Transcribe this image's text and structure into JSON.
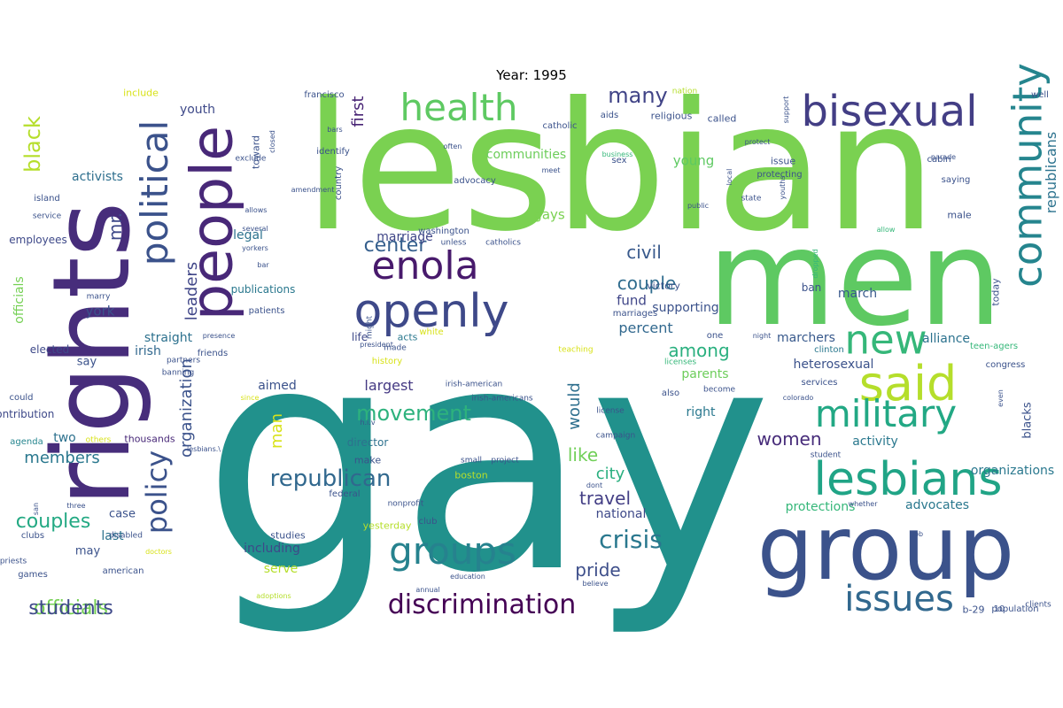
{
  "title": "Year: 1995",
  "cloud": {
    "words": [
      {
        "t": "gay",
        "c": "#21918c"
      },
      {
        "t": "lesbian",
        "c": "#7ad151"
      },
      {
        "t": "men",
        "c": "#5ec962"
      },
      {
        "t": "rights",
        "c": "#472d7b"
      },
      {
        "t": "group",
        "c": "#3b528b"
      },
      {
        "t": "openly",
        "c": "#3e4989"
      },
      {
        "t": "people",
        "c": "#482878"
      },
      {
        "t": "bisexual",
        "c": "#433e85"
      },
      {
        "t": "health",
        "c": "#5ec962"
      },
      {
        "t": "enola",
        "c": "#481a6c"
      },
      {
        "t": "political",
        "c": "#3b528b"
      },
      {
        "t": "community",
        "c": "#25858e"
      },
      {
        "t": "said",
        "c": "#b5de2b"
      },
      {
        "t": "new",
        "c": "#35b779"
      },
      {
        "t": "military",
        "c": "#22a884"
      },
      {
        "t": "lesbians",
        "c": "#20a486"
      },
      {
        "t": "groups",
        "c": "#26828e"
      },
      {
        "t": "issues",
        "c": "#31688e"
      },
      {
        "t": "discrimination",
        "c": "#440154"
      },
      {
        "t": "policy",
        "c": "#3b528b"
      },
      {
        "t": "crisis",
        "c": "#2a788e"
      },
      {
        "t": "republican",
        "c": "#31688e"
      },
      {
        "t": "movement",
        "c": "#2db27d"
      },
      {
        "t": "couples",
        "c": "#23a983"
      },
      {
        "t": "officials",
        "c": "#75d054"
      },
      {
        "t": "many",
        "c": "#414487"
      },
      {
        "t": "black",
        "c": "#b5de2b"
      },
      {
        "t": "center",
        "c": "#355f8d"
      },
      {
        "t": "couple",
        "c": "#2f6c8e"
      },
      {
        "t": "civil",
        "c": "#38598c"
      },
      {
        "t": "among",
        "c": "#2ab07f"
      },
      {
        "t": "women",
        "c": "#472c7a"
      },
      {
        "t": "like",
        "c": "#70cf57"
      },
      {
        "t": "pride",
        "c": "#3d4e8a"
      },
      {
        "t": "travel",
        "c": "#433e85"
      },
      {
        "t": "members",
        "c": "#2a788e"
      },
      {
        "t": "mr.",
        "c": "#3e4989"
      },
      {
        "t": "organization",
        "c": "#3b528b"
      },
      {
        "t": "leaders",
        "c": "#404688"
      },
      {
        "t": "largest",
        "c": "#443983"
      },
      {
        "t": "republicans",
        "c": "#2c728e"
      },
      {
        "t": "city",
        "c": "#29af7f"
      },
      {
        "t": "would",
        "c": "#2e6f8e"
      },
      {
        "t": "activists",
        "c": "#2e6f8e"
      },
      {
        "t": "straight",
        "c": "#2d718e"
      },
      {
        "t": "york",
        "c": "#3b528b"
      },
      {
        "t": "marriage",
        "c": "#404688"
      },
      {
        "t": "gays",
        "c": "#7ad151"
      },
      {
        "t": "legal",
        "c": "#2c728e"
      },
      {
        "t": "percent",
        "c": "#31688e"
      },
      {
        "t": "fund",
        "c": "#404688"
      },
      {
        "t": "irish",
        "c": "#31688e"
      },
      {
        "t": "march",
        "c": "#38598c"
      },
      {
        "t": "right",
        "c": "#2a788e"
      },
      {
        "t": "parents",
        "c": "#6ccd5a"
      },
      {
        "t": "aimed",
        "c": "#3b528b"
      },
      {
        "t": "man",
        "c": "#d8e219"
      },
      {
        "t": "two",
        "c": "#2d718e"
      },
      {
        "t": "young",
        "c": "#5ec962"
      },
      {
        "t": "first",
        "c": "#482475"
      },
      {
        "t": "youth",
        "c": "#3e4989"
      },
      {
        "t": "communities",
        "c": "#6ccd5a"
      },
      {
        "t": "including",
        "c": "#3e4989"
      },
      {
        "t": "serve",
        "c": "#b5de2b"
      },
      {
        "t": "national",
        "c": "#3e4989"
      },
      {
        "t": "protections",
        "c": "#35b779"
      },
      {
        "t": "advocates",
        "c": "#2a788e"
      },
      {
        "t": "organizations",
        "c": "#2a788e"
      },
      {
        "t": "activity",
        "c": "#2a788e"
      },
      {
        "t": "heterosexual",
        "c": "#3b528b"
      },
      {
        "t": "marchers",
        "c": "#38598c"
      },
      {
        "t": "alliance",
        "c": "#2c728e"
      },
      {
        "t": "blacks",
        "c": "#3b528b"
      },
      {
        "t": "students",
        "c": "#3e4989"
      },
      {
        "t": "officials",
        "c": "#75d054"
      },
      {
        "t": "say",
        "c": "#3b528b"
      },
      {
        "t": "last",
        "c": "#2c728e"
      },
      {
        "t": "may",
        "c": "#3b528b"
      },
      {
        "t": "case",
        "c": "#3b528b"
      },
      {
        "t": "employees",
        "c": "#3e4989"
      },
      {
        "t": "elected",
        "c": "#3e4989"
      },
      {
        "t": "contribution",
        "c": "#3e4989"
      },
      {
        "t": "could",
        "c": "#3b528b"
      },
      {
        "t": "agenda",
        "c": "#25858e"
      },
      {
        "t": "thousands",
        "c": "#482878"
      },
      {
        "t": "director",
        "c": "#2d718e"
      },
      {
        "t": "life",
        "c": "#3e4989"
      },
      {
        "t": "acts",
        "c": "#2a788e"
      },
      {
        "t": "publications",
        "c": "#2a788e"
      },
      {
        "t": "patients",
        "c": "#3b528b"
      },
      {
        "t": "victory",
        "c": "#3b528b"
      },
      {
        "t": "marriages",
        "c": "#3b528b"
      },
      {
        "t": "supporting",
        "c": "#3b528b"
      },
      {
        "t": "ban",
        "c": "#3b528b"
      },
      {
        "t": "one",
        "c": "#3b528b"
      },
      {
        "t": "clinton",
        "c": "#2a788e"
      },
      {
        "t": "services",
        "c": "#3b528b"
      },
      {
        "t": "also",
        "c": "#3b528b"
      },
      {
        "t": "issue",
        "c": "#3b528b"
      },
      {
        "t": "protecting",
        "c": "#3b528b"
      },
      {
        "t": "called",
        "c": "#3b528b"
      },
      {
        "t": "religious",
        "c": "#3b528b"
      },
      {
        "t": "aids",
        "c": "#3b528b"
      },
      {
        "t": "sex",
        "c": "#3b528b"
      },
      {
        "t": "identify",
        "c": "#3b528b"
      },
      {
        "t": "advocacy",
        "c": "#3b528b"
      },
      {
        "t": "country",
        "c": "#3b528b"
      },
      {
        "t": "toward",
        "c": "#3b528b"
      },
      {
        "t": "male",
        "c": "#3b528b"
      },
      {
        "t": "saying",
        "c": "#3b528b"
      },
      {
        "t": "cabin",
        "c": "#3b528b"
      },
      {
        "t": "well",
        "c": "#3b528b"
      },
      {
        "t": "today",
        "c": "#3b528b"
      },
      {
        "t": "teen-agers",
        "c": "#35b779"
      },
      {
        "t": "congress",
        "c": "#3b528b"
      },
      {
        "t": "make",
        "c": "#3b528b"
      },
      {
        "t": "boston",
        "c": "#b5de2b"
      },
      {
        "t": "yesterday",
        "c": "#b5de2b"
      },
      {
        "t": "studies",
        "c": "#3b528b"
      },
      {
        "t": "american",
        "c": "#3b528b"
      },
      {
        "t": "games",
        "c": "#3b528b"
      },
      {
        "t": "clubs",
        "c": "#3b528b"
      },
      {
        "t": "b-29",
        "c": "#3b528b"
      },
      {
        "t": "population",
        "c": "#3b528b"
      },
      {
        "t": "10",
        "c": "#3b528b"
      },
      {
        "t": "clients",
        "c": "#3b528b"
      },
      {
        "t": "include",
        "c": "#d8e219"
      },
      {
        "t": "francisco",
        "c": "#3b528b"
      },
      {
        "t": "nation",
        "c": "#b5de2b"
      },
      {
        "t": "catholic",
        "c": "#3b528b"
      },
      {
        "t": "island",
        "c": "#3b528b"
      },
      {
        "t": "service",
        "c": "#3b528b"
      },
      {
        "t": "marry",
        "c": "#3b528b"
      },
      {
        "t": "washington",
        "c": "#3b528b"
      },
      {
        "t": "unless",
        "c": "#3b528b"
      },
      {
        "t": "catholics",
        "c": "#3b528b"
      },
      {
        "t": "exclude",
        "c": "#3b528b"
      },
      {
        "t": "others",
        "c": "#d8e219"
      },
      {
        "t": "white",
        "c": "#d8e219"
      },
      {
        "t": "teaching",
        "c": "#d8e219"
      },
      {
        "t": "history",
        "c": "#d8e219"
      },
      {
        "t": "friends",
        "c": "#3b528b"
      },
      {
        "t": "partners",
        "c": "#3b528b"
      },
      {
        "t": "banning",
        "c": "#3b528b"
      },
      {
        "t": "disabled",
        "c": "#3b528b"
      },
      {
        "t": "priests",
        "c": "#3b528b"
      },
      {
        "t": "doctors",
        "c": "#d8e219"
      },
      {
        "t": "club",
        "c": "#3b528b"
      },
      {
        "t": "federal",
        "c": "#3b528b"
      },
      {
        "t": "nonprofit",
        "c": "#3b528b"
      },
      {
        "t": "irish-american",
        "c": "#3b528b"
      },
      {
        "t": "irish-americans",
        "c": "#3b528b"
      },
      {
        "t": "license",
        "c": "#3b528b"
      },
      {
        "t": "campaign",
        "c": "#3b528b"
      },
      {
        "t": "small",
        "c": "#3b528b"
      },
      {
        "t": "project",
        "c": "#3b528b"
      },
      {
        "t": "dont",
        "c": "#3b528b"
      },
      {
        "t": "believe",
        "c": "#3b528b"
      },
      {
        "t": "education",
        "c": "#3b528b"
      },
      {
        "t": "annual",
        "c": "#3b528b"
      },
      {
        "t": "adoptions",
        "c": "#b5de2b"
      },
      {
        "t": "allows",
        "c": "#3b528b"
      },
      {
        "t": "several",
        "c": "#3b528b"
      },
      {
        "t": "yorkers",
        "c": "#3b528b"
      },
      {
        "t": "president",
        "c": "#3b528b"
      },
      {
        "t": "might",
        "c": "#3b528b"
      },
      {
        "t": "made",
        "c": "#3b528b"
      },
      {
        "t": "presence",
        "c": "#3b528b"
      },
      {
        "t": "allow",
        "c": "#35b779"
      },
      {
        "t": "licenses",
        "c": "#35b779"
      },
      {
        "t": "become",
        "c": "#3b528b"
      },
      {
        "t": "night",
        "c": "#3b528b"
      },
      {
        "t": "dropped",
        "c": "#35b779"
      },
      {
        "t": "colorado",
        "c": "#3b528b"
      },
      {
        "t": "student",
        "c": "#3b528b"
      },
      {
        "t": "whether",
        "c": "#3b528b"
      },
      {
        "t": "job",
        "c": "#3b528b"
      },
      {
        "t": "even",
        "c": "#3b528b"
      },
      {
        "t": "business",
        "c": "#35b779"
      },
      {
        "t": "public",
        "c": "#3b528b"
      },
      {
        "t": "protect",
        "c": "#3b528b"
      },
      {
        "t": "state",
        "c": "#3b528b"
      },
      {
        "t": "youths",
        "c": "#3b528b"
      },
      {
        "t": "support",
        "c": "#3b528b"
      },
      {
        "t": "local",
        "c": "#3b528b"
      },
      {
        "t": "parade",
        "c": "#3b528b"
      },
      {
        "t": "often",
        "c": "#3b528b"
      },
      {
        "t": "meet",
        "c": "#3b528b"
      },
      {
        "t": "bars",
        "c": "#3b528b"
      },
      {
        "t": "closed",
        "c": "#3b528b"
      },
      {
        "t": "amendment",
        "c": "#3b528b"
      },
      {
        "t": "san",
        "c": "#3b528b"
      },
      {
        "t": "three",
        "c": "#3b528b"
      },
      {
        "t": "since",
        "c": "#d8e219"
      },
      {
        "t": "h.i.v",
        "c": "#3b528b"
      },
      {
        "t": "lesbians.\\",
        "c": "#3b528b"
      },
      {
        "t": "bar",
        "c": "#3b528b"
      },
      {
        "t": "g",
        "c": "#3b528b"
      }
    ]
  }
}
